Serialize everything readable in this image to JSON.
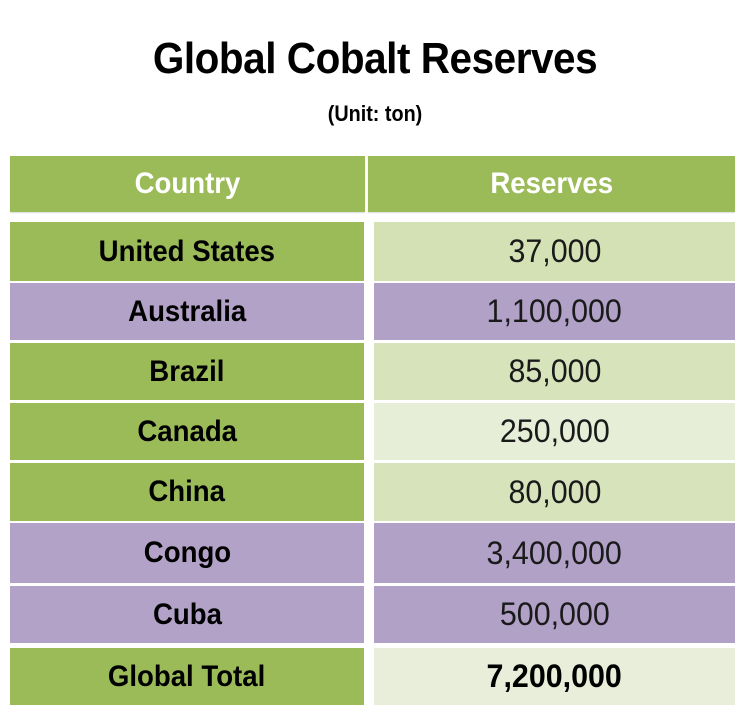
{
  "title": "Global Cobalt Reserves",
  "subtitle": "(Unit: ton)",
  "table": {
    "headers": [
      "Country",
      "Reserves"
    ],
    "rows": [
      {
        "country": "United States",
        "reserves": "37,000",
        "left_color": "#9bbb59",
        "right_color": "#d3e1b5"
      },
      {
        "country": "Australia",
        "reserves": "1,100,000",
        "left_color": "#b3a2c8",
        "right_color": "#b1a1c7"
      },
      {
        "country": "Brazil",
        "reserves": "85,000",
        "left_color": "#9bbb59",
        "right_color": "#d6e3bb"
      },
      {
        "country": "Canada",
        "reserves": "250,000",
        "left_color": "#9bbb59",
        "right_color": "#e6eed8"
      },
      {
        "country": "China",
        "reserves": "80,000",
        "left_color": "#9bbb59",
        "right_color": "#d6e3bb"
      },
      {
        "country": "Congo",
        "reserves": "3,400,000",
        "left_color": "#b3a2c8",
        "right_color": "#b1a1c7"
      },
      {
        "country": "Cuba",
        "reserves": "500,000",
        "left_color": "#b3a2c8",
        "right_color": "#b1a1c7"
      }
    ],
    "total": {
      "label": "Global Total",
      "reserves": "7,200,000",
      "left_color": "#9bbb59",
      "right_color": "#e8eed9"
    }
  },
  "colors": {
    "header_bg": "#9bbb59",
    "header_text": "#ffffff",
    "green": "#9bbb59",
    "purple": "#b3a2c8"
  },
  "chart_data": {
    "type": "table",
    "title": "Global Cobalt Reserves",
    "subtitle": "(Unit: ton)",
    "columns": [
      "Country",
      "Reserves"
    ],
    "categories": [
      "United States",
      "Australia",
      "Brazil",
      "Canada",
      "China",
      "Congo",
      "Cuba",
      "Global Total"
    ],
    "values": [
      37000,
      1100000,
      85000,
      250000,
      80000,
      3400000,
      500000,
      7200000
    ],
    "unit": "ton"
  }
}
